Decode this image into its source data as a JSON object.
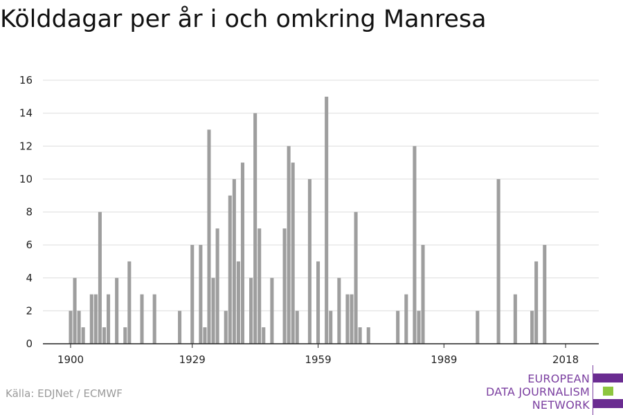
{
  "title": "Kölddagar per år i och omkring Manresa",
  "source": "Källa: EDJNet / ECMWF",
  "logo": {
    "lines": [
      "EUROPEAN",
      "DATA JOURNALISM",
      "NETWORK"
    ],
    "colors": {
      "text": "#7b3fa0",
      "bar_purple": "#6a2c91",
      "bar_green": "#8dc63f"
    }
  },
  "chart_data": {
    "type": "bar",
    "title": "Kölddagar per år i och omkring Manresa",
    "xlabel": "",
    "ylabel": "",
    "xlim": [
      1899,
      2018
    ],
    "ylim": [
      0,
      16
    ],
    "yticks": [
      0,
      2,
      4,
      6,
      8,
      10,
      12,
      14,
      16
    ],
    "xticks": [
      1900,
      1929,
      1959,
      1989,
      2018
    ],
    "grid": true,
    "bar_color": "#9e9e9e",
    "x": [
      1900,
      1901,
      1902,
      1903,
      1905,
      1906,
      1907,
      1908,
      1909,
      1911,
      1913,
      1914,
      1917,
      1920,
      1926,
      1929,
      1931,
      1932,
      1933,
      1934,
      1935,
      1937,
      1938,
      1939,
      1940,
      1941,
      1943,
      1944,
      1945,
      1946,
      1948,
      1951,
      1952,
      1953,
      1954,
      1957,
      1959,
      1961,
      1962,
      1964,
      1966,
      1967,
      1968,
      1969,
      1971,
      1978,
      1980,
      1982,
      1983,
      1984,
      1997,
      2002,
      2006,
      2010,
      2011,
      2013
    ],
    "values": [
      2,
      4,
      2,
      1,
      3,
      3,
      8,
      1,
      3,
      4,
      1,
      5,
      3,
      3,
      2,
      6,
      6,
      1,
      13,
      4,
      7,
      2,
      9,
      10,
      5,
      11,
      4,
      14,
      7,
      1,
      4,
      7,
      12,
      11,
      2,
      10,
      5,
      15,
      2,
      4,
      3,
      3,
      8,
      1,
      1,
      2,
      3,
      12,
      2,
      6,
      2,
      10,
      3,
      2,
      5,
      6
    ]
  }
}
